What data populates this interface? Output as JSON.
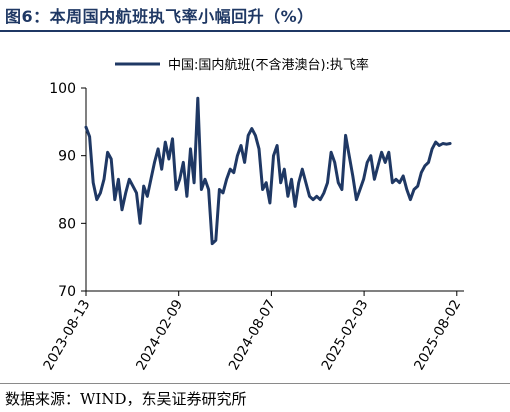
{
  "figure": {
    "title": "图6：本周国内航班执飞率小幅回升（%）",
    "source": "数据来源：WIND，东吴证券研究所"
  },
  "colors": {
    "series": "#1f3864",
    "title": "#1f3864",
    "axis": "#000000"
  },
  "chart_data": {
    "type": "line",
    "title": "",
    "xlabel": "",
    "ylabel": "",
    "ylim": [
      70,
      100
    ],
    "yticks": [
      70,
      80,
      90,
      100
    ],
    "xlim": [
      "2023-08-13",
      "2025-08-16"
    ],
    "xticks": [
      "2023-08-13",
      "2024-02-09",
      "2024-08-07",
      "2025-02-03",
      "2025-08-02"
    ],
    "legend_position": "top",
    "grid": false,
    "series": [
      {
        "name": "中国:国内航班(不含港澳台):执飞率",
        "points": [
          [
            "2023-08-13",
            94.2
          ],
          [
            "2023-08-20",
            92.8
          ],
          [
            "2023-08-27",
            86.0
          ],
          [
            "2023-09-03",
            83.5
          ],
          [
            "2023-09-10",
            84.5
          ],
          [
            "2023-09-17",
            86.5
          ],
          [
            "2023-09-24",
            90.5
          ],
          [
            "2023-10-01",
            89.5
          ],
          [
            "2023-10-08",
            83.5
          ],
          [
            "2023-10-15",
            86.5
          ],
          [
            "2023-10-22",
            82.0
          ],
          [
            "2023-10-29",
            84.5
          ],
          [
            "2023-11-05",
            86.5
          ],
          [
            "2023-11-12",
            85.5
          ],
          [
            "2023-11-19",
            84.5
          ],
          [
            "2023-11-26",
            80.0
          ],
          [
            "2023-12-03",
            85.5
          ],
          [
            "2023-12-10",
            84.0
          ],
          [
            "2023-12-17",
            86.5
          ],
          [
            "2023-12-24",
            89.0
          ],
          [
            "2023-12-31",
            91.0
          ],
          [
            "2024-01-07",
            88.0
          ],
          [
            "2024-01-14",
            92.0
          ],
          [
            "2024-01-21",
            89.5
          ],
          [
            "2024-01-28",
            92.5
          ],
          [
            "2024-02-04",
            85.0
          ],
          [
            "2024-02-11",
            86.5
          ],
          [
            "2024-02-18",
            89.0
          ],
          [
            "2024-02-25",
            84.0
          ],
          [
            "2024-03-03",
            91.0
          ],
          [
            "2024-03-10",
            86.0
          ],
          [
            "2024-03-17",
            98.5
          ],
          [
            "2024-03-24",
            85.0
          ],
          [
            "2024-03-31",
            86.5
          ],
          [
            "2024-04-07",
            85.0
          ],
          [
            "2024-04-14",
            77.0
          ],
          [
            "2024-04-21",
            77.5
          ],
          [
            "2024-04-28",
            85.0
          ],
          [
            "2024-05-05",
            84.5
          ],
          [
            "2024-05-12",
            86.5
          ],
          [
            "2024-05-19",
            88.0
          ],
          [
            "2024-05-26",
            87.5
          ],
          [
            "2024-06-02",
            90.0
          ],
          [
            "2024-06-09",
            91.5
          ],
          [
            "2024-06-16",
            89.0
          ],
          [
            "2024-06-23",
            93.0
          ],
          [
            "2024-06-30",
            94.0
          ],
          [
            "2024-07-07",
            93.0
          ],
          [
            "2024-07-14",
            91.0
          ],
          [
            "2024-07-21",
            85.0
          ],
          [
            "2024-07-28",
            86.0
          ],
          [
            "2024-08-04",
            83.0
          ],
          [
            "2024-08-11",
            90.0
          ],
          [
            "2024-08-18",
            91.5
          ],
          [
            "2024-08-25",
            86.0
          ],
          [
            "2024-09-01",
            88.0
          ],
          [
            "2024-09-08",
            84.0
          ],
          [
            "2024-09-15",
            86.5
          ],
          [
            "2024-09-22",
            82.5
          ],
          [
            "2024-09-29",
            86.0
          ],
          [
            "2024-10-06",
            88.0
          ],
          [
            "2024-10-13",
            86.0
          ],
          [
            "2024-10-20",
            84.0
          ],
          [
            "2024-10-27",
            83.5
          ],
          [
            "2024-11-03",
            84.0
          ],
          [
            "2024-11-10",
            83.5
          ],
          [
            "2024-11-17",
            84.5
          ],
          [
            "2024-11-24",
            86.0
          ],
          [
            "2024-12-01",
            90.5
          ],
          [
            "2024-12-08",
            89.0
          ],
          [
            "2024-12-15",
            86.0
          ],
          [
            "2024-12-22",
            85.0
          ],
          [
            "2024-12-29",
            93.0
          ],
          [
            "2025-01-05",
            90.0
          ],
          [
            "2025-01-12",
            87.0
          ],
          [
            "2025-01-19",
            83.5
          ],
          [
            "2025-01-26",
            85.0
          ],
          [
            "2025-02-02",
            86.5
          ],
          [
            "2025-02-09",
            89.0
          ],
          [
            "2025-02-16",
            90.0
          ],
          [
            "2025-02-23",
            86.5
          ],
          [
            "2025-03-02",
            88.5
          ],
          [
            "2025-03-09",
            90.5
          ],
          [
            "2025-03-16",
            89.0
          ],
          [
            "2025-03-23",
            90.5
          ],
          [
            "2025-03-30",
            86.0
          ],
          [
            "2025-04-06",
            86.5
          ],
          [
            "2025-04-13",
            86.0
          ],
          [
            "2025-04-20",
            87.0
          ],
          [
            "2025-04-27",
            85.0
          ],
          [
            "2025-05-04",
            83.5
          ],
          [
            "2025-05-11",
            85.0
          ],
          [
            "2025-05-18",
            85.5
          ],
          [
            "2025-05-25",
            87.5
          ],
          [
            "2025-06-01",
            88.5
          ],
          [
            "2025-06-08",
            89.0
          ],
          [
            "2025-06-15",
            91.0
          ],
          [
            "2025-06-22",
            92.0
          ],
          [
            "2025-06-29",
            91.5
          ],
          [
            "2025-07-06",
            91.8
          ],
          [
            "2025-07-13",
            91.7
          ],
          [
            "2025-07-20",
            91.8
          ]
        ]
      }
    ]
  }
}
